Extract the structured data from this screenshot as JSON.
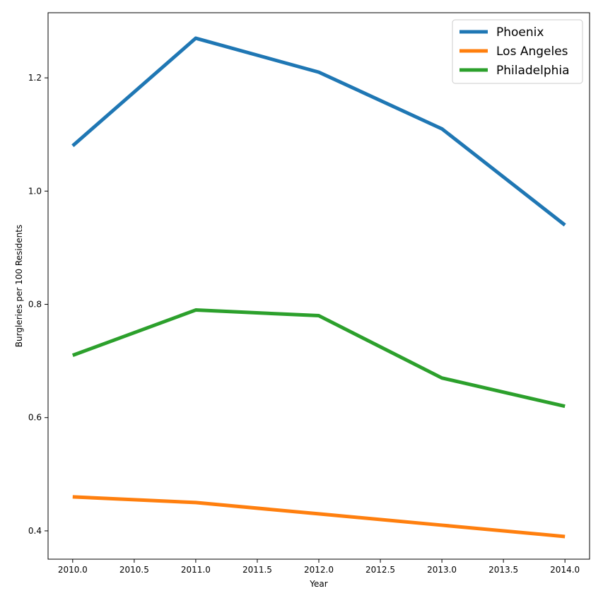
{
  "chart_data": {
    "type": "line",
    "title": "",
    "xlabel": "Year",
    "ylabel": "Burgleries per 100 Residents",
    "x": [
      2010,
      2011,
      2012,
      2013,
      2014
    ],
    "xlim": [
      2009.8,
      2014.2
    ],
    "ylim": [
      0.35,
      1.315
    ],
    "xticks": [
      "2010.0",
      "2010.5",
      "2011.0",
      "2011.5",
      "2012.0",
      "2012.5",
      "2013.0",
      "2013.5",
      "2014.0"
    ],
    "yticks": [
      "0.4",
      "0.6",
      "0.8",
      "1.0",
      "1.2"
    ],
    "grid": false,
    "legend_position": "top-right",
    "series": [
      {
        "name": "Phoenix",
        "color": "#1f77b4",
        "values": [
          1.08,
          1.27,
          1.21,
          1.11,
          0.94
        ]
      },
      {
        "name": "Los Angeles",
        "color": "#ff7f0e",
        "values": [
          0.46,
          0.45,
          0.43,
          0.41,
          0.39
        ]
      },
      {
        "name": "Philadelphia",
        "color": "#2ca02c",
        "values": [
          0.71,
          0.79,
          0.78,
          0.67,
          0.62
        ]
      }
    ]
  }
}
